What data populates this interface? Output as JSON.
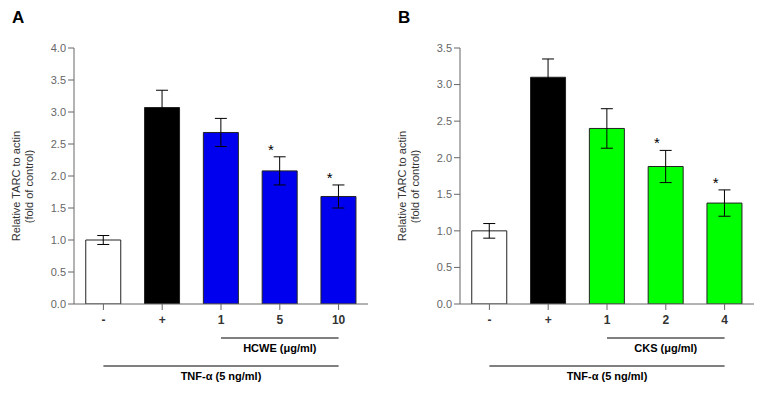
{
  "chart_data": [
    {
      "type": "bar",
      "title": "A",
      "categories": [
        "-",
        "+",
        "1",
        "5",
        "10"
      ],
      "values": [
        1.0,
        3.07,
        2.68,
        2.08,
        1.68
      ],
      "errors": [
        0.07,
        0.27,
        0.22,
        0.22,
        0.18
      ],
      "colors": [
        "white",
        "black",
        "#0000EE",
        "#0000EE",
        "#0000EE"
      ],
      "ylabel": "Relative TARC to actin\n(fold of control)",
      "ylim": [
        0,
        4
      ],
      "yticks": [
        {
          "value": 0,
          "label": "0.0"
        },
        0.5,
        {
          "value": 1,
          "label": "1.0"
        },
        1.5,
        {
          "value": 2,
          "label": "2.0"
        },
        2.5,
        {
          "value": 3,
          "label": "3.0"
        },
        3.5,
        {
          "value": 4,
          "label": "4.0"
        }
      ],
      "grid": false,
      "annotations": [
        {
          "text": "*",
          "category": "5"
        },
        {
          "text": "*",
          "category": "10"
        },
        {
          "text": "HCWE (μg/ml)",
          "from": "1",
          "to": "10"
        },
        {
          "text": "TNF-α (5 ng/ml)",
          "from": "-",
          "to": "10"
        }
      ]
    },
    {
      "type": "bar",
      "title": "B",
      "categories": [
        "-",
        "+",
        "1",
        "2",
        "4"
      ],
      "values": [
        1.0,
        3.1,
        2.4,
        1.88,
        1.38
      ],
      "errors": [
        0.1,
        0.25,
        0.27,
        0.22,
        0.18
      ],
      "colors": [
        "white",
        "black",
        "#00FF00",
        "#00FF00",
        "#00FF00"
      ],
      "ylabel": "Relative TARC to actin\n(fold of control)",
      "ylim": [
        0,
        3.5
      ],
      "yticks": [
        {
          "value": 0,
          "label": "0.0"
        },
        0.5,
        {
          "value": 1,
          "label": "1.0"
        },
        1.5,
        {
          "value": 2,
          "label": "2.0"
        },
        2.5,
        {
          "value": 3,
          "label": "3.0"
        },
        3.5
      ],
      "grid": false,
      "annotations": [
        {
          "text": "*",
          "category": "2"
        },
        {
          "text": "*",
          "category": "4"
        },
        {
          "text": "CKS (μg/ml)",
          "from": "1",
          "to": "4"
        },
        {
          "text": "TNF-α (5 ng/ml)",
          "from": "-",
          "to": "4"
        }
      ]
    }
  ]
}
